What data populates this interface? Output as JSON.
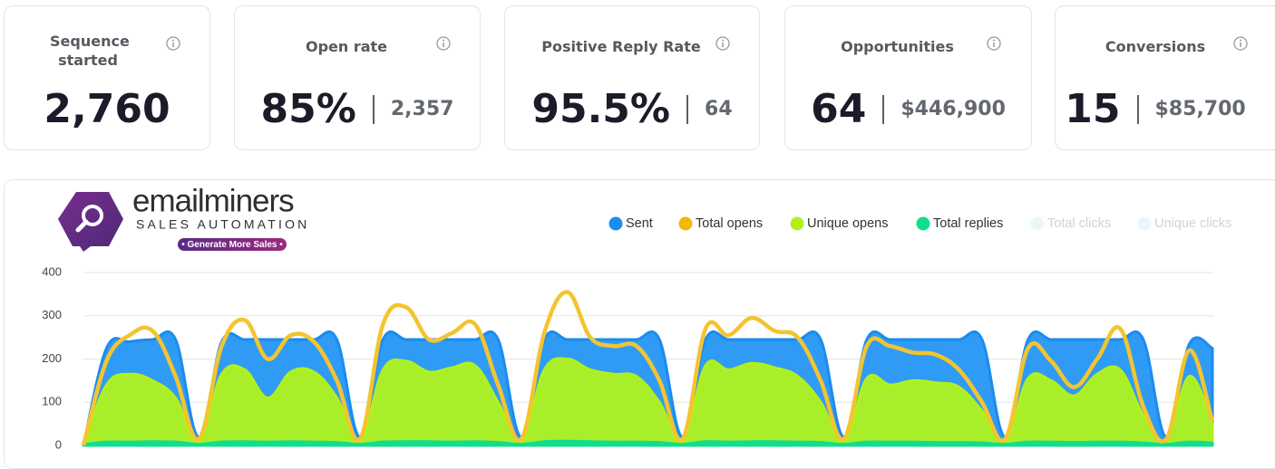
{
  "cards": [
    {
      "title": "Sequence started",
      "value": "2,760"
    },
    {
      "title": "Open rate",
      "value": "85%",
      "detail": "2,357"
    },
    {
      "title": "Positive Reply Rate",
      "value": "95.5%",
      "detail": "64"
    },
    {
      "title": "Opportunities",
      "value": "64",
      "detail": "$446,900"
    },
    {
      "title": "Conversions",
      "value": "15",
      "detail": "$85,700"
    }
  ],
  "logo": {
    "name": "emailminers",
    "subtitle": "SALES AUTOMATION",
    "tagline": "• Generate More Sales •"
  },
  "chart_data": {
    "type": "area",
    "categories": [
      null,
      null,
      null,
      null,
      null,
      null,
      null,
      null,
      null,
      null,
      null,
      null,
      null,
      null,
      null,
      null,
      null,
      null,
      null,
      null,
      null,
      null,
      null,
      null,
      null,
      null,
      null,
      null,
      null,
      null,
      null,
      null,
      null,
      null,
      null,
      null,
      null,
      null,
      null,
      null,
      null,
      null,
      null,
      null,
      null,
      null,
      null,
      null,
      null,
      null
    ],
    "ylim": [
      0,
      400
    ],
    "yticks": [
      0,
      100,
      200,
      300,
      400
    ],
    "grid": true,
    "legend": "top-right",
    "series": [
      {
        "name": "Sent",
        "color": "#1a8cf0",
        "style": "area",
        "values": [
          0,
          225,
          240,
          245,
          245,
          20,
          240,
          245,
          245,
          245,
          245,
          245,
          20,
          245,
          245,
          245,
          245,
          245,
          245,
          20,
          245,
          245,
          245,
          245,
          245,
          245,
          20,
          245,
          245,
          245,
          245,
          245,
          245,
          20,
          245,
          245,
          245,
          245,
          245,
          245,
          20,
          245,
          245,
          245,
          245,
          245,
          245,
          20,
          235,
          225
        ]
      },
      {
        "name": "Total opens",
        "color": "#f5b800",
        "style": "line",
        "values": [
          0,
          195,
          255,
          265,
          160,
          15,
          230,
          290,
          200,
          255,
          240,
          150,
          15,
          280,
          320,
          245,
          260,
          280,
          140,
          15,
          260,
          355,
          250,
          230,
          230,
          150,
          15,
          270,
          255,
          295,
          265,
          250,
          150,
          15,
          230,
          230,
          215,
          210,
          175,
          100,
          15,
          225,
          195,
          135,
          200,
          270,
          90,
          15,
          220,
          55
        ]
      },
      {
        "name": "Unique opens",
        "color": "#b2f01c",
        "style": "area",
        "values": [
          0,
          140,
          165,
          150,
          110,
          10,
          165,
          175,
          110,
          170,
          170,
          110,
          10,
          175,
          195,
          170,
          180,
          185,
          100,
          10,
          175,
          200,
          175,
          165,
          160,
          100,
          10,
          185,
          175,
          190,
          180,
          160,
          100,
          10,
          155,
          140,
          150,
          145,
          135,
          80,
          10,
          155,
          150,
          115,
          165,
          175,
          70,
          10,
          160,
          50
        ]
      },
      {
        "name": "Total replies",
        "color": "#12dd8c",
        "style": "area",
        "values": [
          2,
          8,
          8,
          9,
          8,
          3,
          8,
          9,
          8,
          9,
          8,
          7,
          3,
          8,
          9,
          9,
          8,
          9,
          7,
          3,
          9,
          10,
          9,
          8,
          8,
          7,
          3,
          9,
          8,
          9,
          9,
          8,
          7,
          3,
          8,
          8,
          8,
          7,
          7,
          6,
          3,
          8,
          8,
          7,
          8,
          8,
          6,
          3,
          8,
          6
        ]
      },
      {
        "name": "Total clicks",
        "color": "#eaf6f9",
        "hidden": true
      },
      {
        "name": "Unique clicks",
        "color": "#eaf6f9",
        "hidden": true
      }
    ]
  }
}
